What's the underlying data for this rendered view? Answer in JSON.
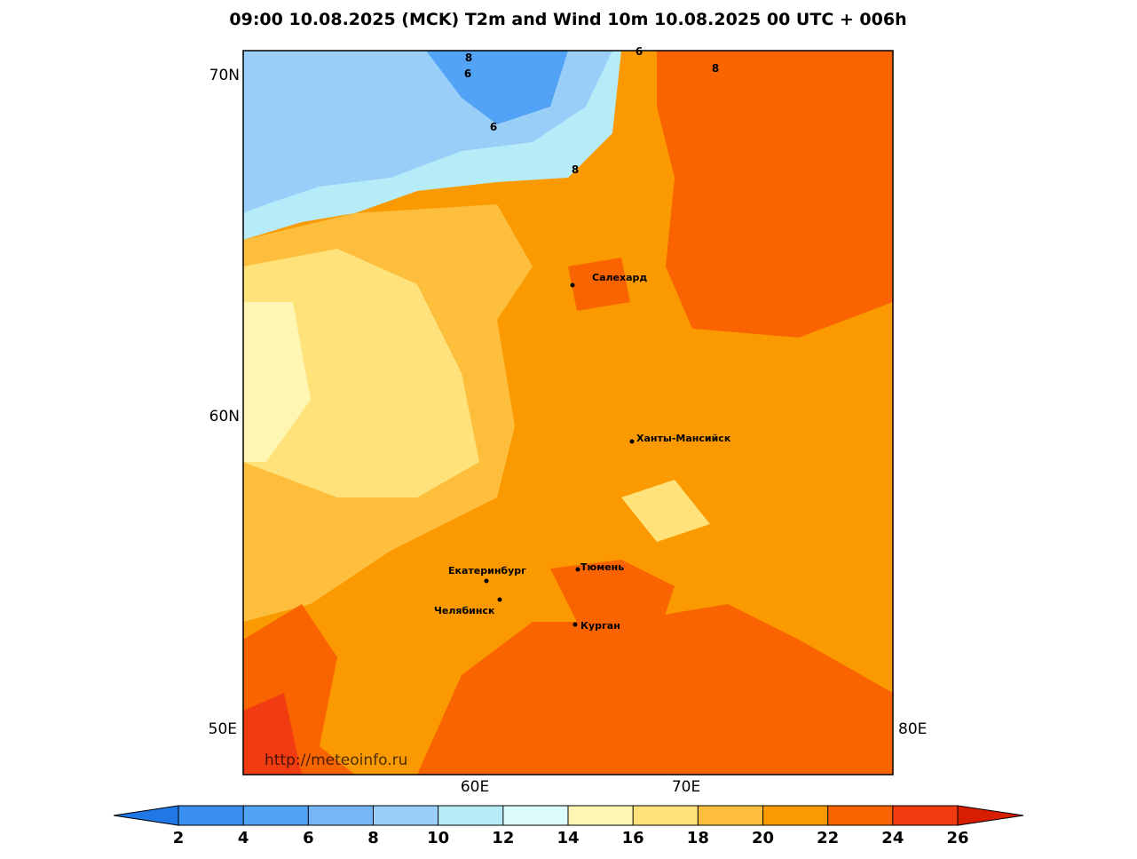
{
  "title": "09:00 10.08.2025 (MCK) T2m and Wind 10m 10.08.2025 00 UTC + 006h",
  "map": {
    "lat_labels": [
      "70N",
      "60N"
    ],
    "lon_labels": [
      "50E",
      "60E",
      "70E",
      "80E"
    ],
    "cities": [
      "Салехард",
      "Ханты-Мансийск",
      "Екатеринбург",
      "Тюмень",
      "Челябинск",
      "Курган"
    ],
    "contour_labels": [
      "8",
      "6",
      "6",
      "8",
      "6",
      "8"
    ],
    "watermark": "http://meteoinfo.ru"
  },
  "colorbar": {
    "ticks": [
      2,
      4,
      6,
      8,
      10,
      12,
      14,
      16,
      18,
      20,
      22,
      24,
      26
    ],
    "colors": [
      "#1f78e6",
      "#3a8ef0",
      "#52a2f5",
      "#76b6f6",
      "#98cef8",
      "#b6ecf8",
      "#dcfcfc",
      "#fff6b4",
      "#ffe27a",
      "#fcbe3c",
      "#fa9a00",
      "#fa6400",
      "#f03c10",
      "#d81e00"
    ]
  }
}
